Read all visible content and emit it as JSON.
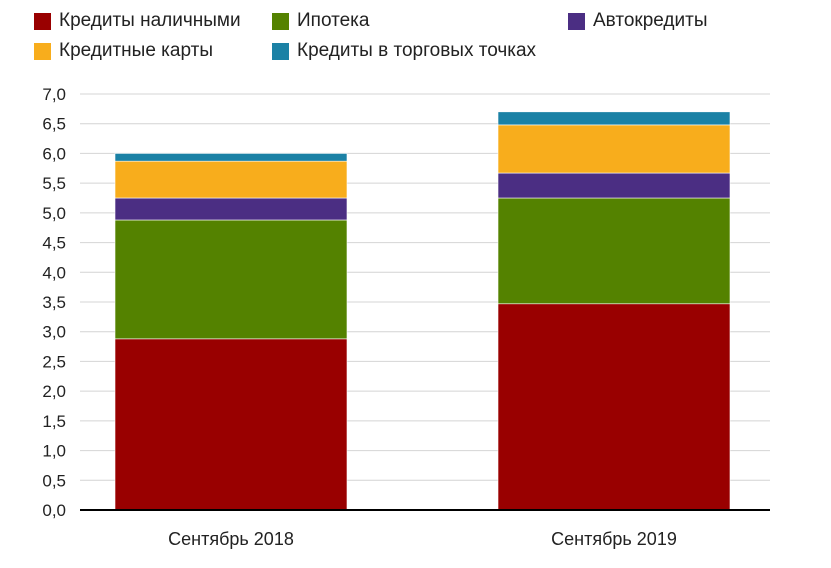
{
  "chart_data": {
    "type": "bar",
    "stacked": true,
    "title": "",
    "xlabel": "",
    "ylabel": "",
    "categories": [
      "Сентябрь 2018",
      "Сентябрь 2019"
    ],
    "ylim": [
      0,
      7
    ],
    "yticks": [
      "0,0",
      "0,5",
      "1,0",
      "1,5",
      "2,0",
      "2,5",
      "3,0",
      "3,5",
      "4,0",
      "4,5",
      "5,0",
      "5,5",
      "6,0",
      "6,5",
      "7,0"
    ],
    "grid": true,
    "legend_position": "top",
    "series": [
      {
        "name": "Кредиты наличными",
        "color": "#990000",
        "values": [
          2.88,
          3.47
        ]
      },
      {
        "name": "Ипотека",
        "color": "#548200",
        "values": [
          2.0,
          1.78
        ]
      },
      {
        "name": "Автокредиты",
        "color": "#4b2e83",
        "values": [
          0.37,
          0.42
        ]
      },
      {
        "name": "Кредитные карты",
        "color": "#f8ad1c",
        "values": [
          0.62,
          0.81
        ]
      },
      {
        "name": "Кредиты в торговых точках",
        "color": "#1b81a5",
        "values": [
          0.13,
          0.22
        ]
      }
    ]
  }
}
